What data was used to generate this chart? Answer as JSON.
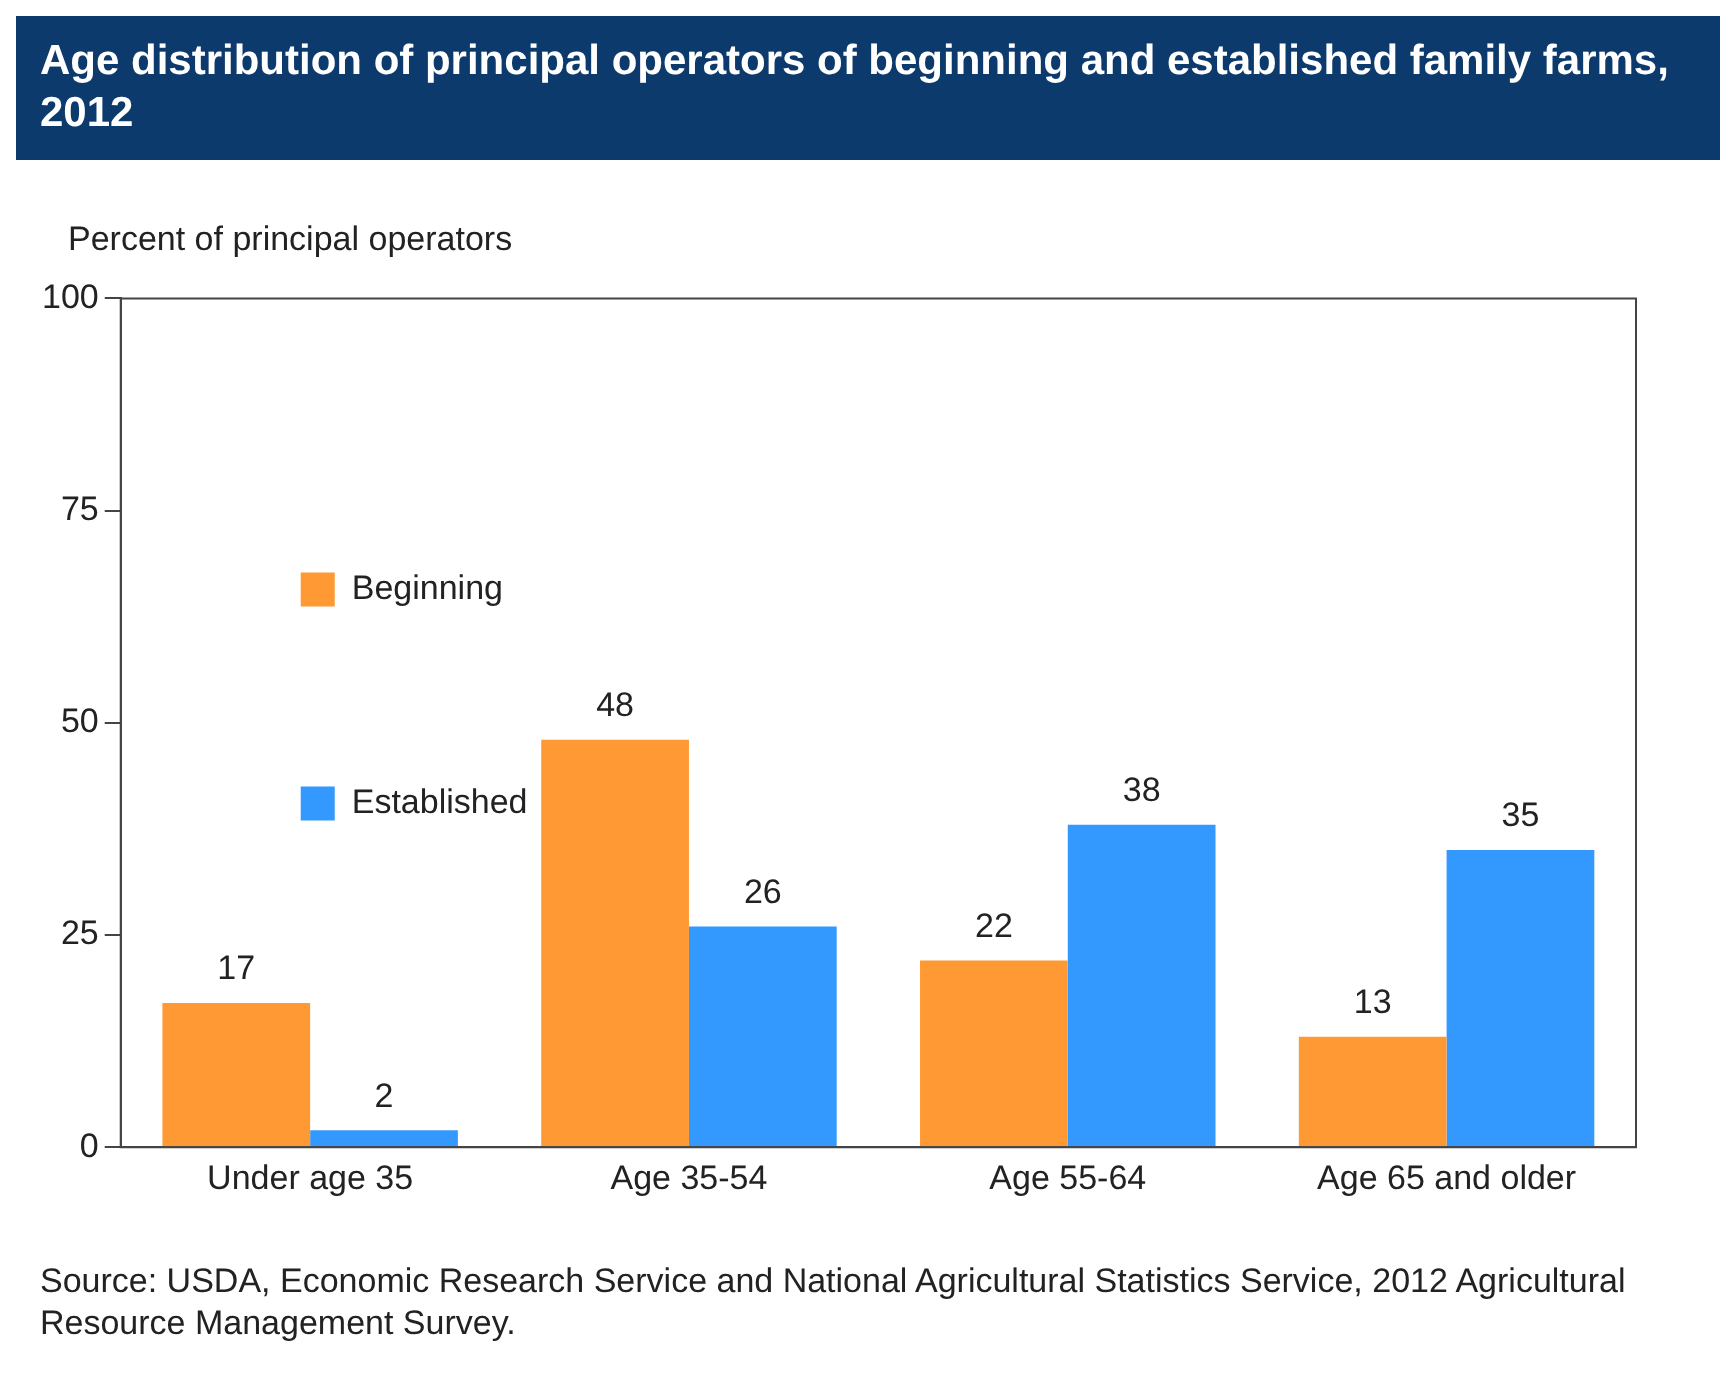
{
  "chart_data": {
    "type": "bar",
    "title": "Age distribution of principal operators of beginning and established family farms, 2012",
    "ylabel": "Percent of principal operators",
    "categories": [
      "Under age 35",
      "Age 35-54",
      "Age 55-64",
      "Age 65 and older"
    ],
    "series": [
      {
        "name": "Beginning",
        "color": "#ff9933",
        "values": [
          17,
          48,
          22,
          13
        ]
      },
      {
        "name": "Established",
        "color": "#3399ff",
        "values": [
          2,
          26,
          38,
          35
        ]
      }
    ],
    "ylim": [
      0,
      100
    ],
    "yticks": [
      0,
      25,
      50,
      75,
      100
    ],
    "grid": false,
    "legend": "top",
    "data_labels": true,
    "annotations": [
      "Source: USDA, Economic Research Service and National Agricultural Statistics Service, 2012 Agricultural Resource Management Survey."
    ]
  }
}
